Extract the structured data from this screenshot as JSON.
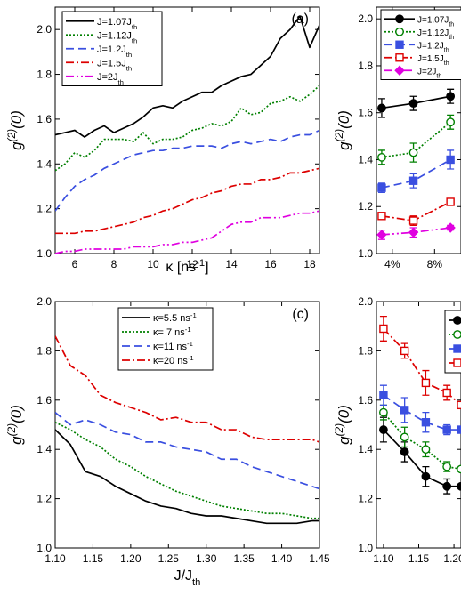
{
  "panels": [
    {
      "id": "a",
      "panel_label": "(a)",
      "xlabel": "κ [ns",
      "xlabel_sup": "-1",
      "xlabel_tail": "]",
      "ylabel": "g",
      "ylabel_sup": "(2)",
      "ylabel_tail": "(0)"
    },
    {
      "id": "b",
      "panel_label": "",
      "xlabel": "",
      "ylabel": "g",
      "ylabel_sup": "(2)",
      "ylabel_tail": "(0)"
    },
    {
      "id": "c",
      "panel_label": "(c)",
      "xlabel": "J/J",
      "xlabel_sub": "th",
      "ylabel": "g",
      "ylabel_sup": "(2)",
      "ylabel_tail": "(0)"
    },
    {
      "id": "d",
      "panel_label": "",
      "xlabel": "",
      "ylabel": "g",
      "ylabel_sup": "(2)",
      "ylabel_tail": "(0)"
    }
  ],
  "chart_data": [
    {
      "panel": "a",
      "type": "line",
      "xlim": [
        5,
        18.5
      ],
      "ylim": [
        1.0,
        2.1
      ],
      "xticks": [
        "6",
        "8",
        "10",
        "12",
        "14",
        "16",
        "18"
      ],
      "yticks": [
        "1.0",
        "1.2",
        "1.4",
        "1.6",
        "1.8",
        "2.0"
      ],
      "xtick_values": [
        6,
        8,
        10,
        12,
        14,
        16,
        18
      ],
      "ytick_values": [
        1.0,
        1.2,
        1.4,
        1.6,
        1.8,
        2.0
      ],
      "legend_position": "top-left",
      "x": [
        5,
        5.5,
        6,
        6.5,
        7,
        7.5,
        8,
        8.5,
        9,
        9.5,
        10,
        10.5,
        11,
        11.5,
        12,
        12.5,
        13,
        13.5,
        14,
        14.5,
        15,
        15.5,
        16,
        16.5,
        17,
        17.5,
        18,
        18.5
      ],
      "series": [
        {
          "name": "J=1.07J",
          "name_sub": "th",
          "color": "#000000",
          "dash": "",
          "values": [
            1.53,
            1.54,
            1.55,
            1.52,
            1.55,
            1.57,
            1.54,
            1.56,
            1.58,
            1.61,
            1.65,
            1.66,
            1.65,
            1.68,
            1.7,
            1.72,
            1.72,
            1.75,
            1.77,
            1.79,
            1.8,
            1.84,
            1.88,
            1.96,
            2.0,
            2.06,
            1.92,
            2.02
          ]
        },
        {
          "name": "J=1.12J",
          "name_sub": "th",
          "color": "#008000",
          "dash": "2,2",
          "values": [
            1.37,
            1.4,
            1.45,
            1.43,
            1.46,
            1.51,
            1.51,
            1.51,
            1.5,
            1.54,
            1.49,
            1.51,
            1.51,
            1.52,
            1.55,
            1.56,
            1.58,
            1.57,
            1.59,
            1.65,
            1.62,
            1.63,
            1.67,
            1.68,
            1.7,
            1.68,
            1.71,
            1.75
          ]
        },
        {
          "name": "J=1.2J",
          "name_sub": "th",
          "color": "#3a4fe0",
          "dash": "9,5",
          "values": [
            1.19,
            1.25,
            1.3,
            1.33,
            1.35,
            1.38,
            1.4,
            1.42,
            1.44,
            1.45,
            1.46,
            1.46,
            1.47,
            1.47,
            1.48,
            1.48,
            1.48,
            1.47,
            1.49,
            1.5,
            1.49,
            1.5,
            1.51,
            1.5,
            1.52,
            1.53,
            1.53,
            1.55
          ]
        },
        {
          "name": "J=1.5J",
          "name_sub": "th",
          "color": "#dd0000",
          "dash": "9,3,2,3",
          "values": [
            1.09,
            1.09,
            1.09,
            1.1,
            1.1,
            1.11,
            1.12,
            1.13,
            1.14,
            1.16,
            1.17,
            1.19,
            1.2,
            1.22,
            1.24,
            1.25,
            1.27,
            1.28,
            1.3,
            1.31,
            1.31,
            1.33,
            1.33,
            1.34,
            1.36,
            1.36,
            1.37,
            1.38
          ]
        },
        {
          "name": "J=2J",
          "name_sub": "th",
          "color": "#e000e0",
          "dash": "9,3,2,3,2,3",
          "values": [
            1.0,
            1.01,
            1.01,
            1.02,
            1.02,
            1.02,
            1.02,
            1.02,
            1.03,
            1.03,
            1.03,
            1.04,
            1.04,
            1.05,
            1.05,
            1.06,
            1.07,
            1.1,
            1.13,
            1.14,
            1.14,
            1.16,
            1.16,
            1.16,
            1.17,
            1.18,
            1.18,
            1.19
          ]
        }
      ]
    },
    {
      "panel": "b",
      "type": "line",
      "xlim": [
        2.5,
        10.5
      ],
      "ylim": [
        1.0,
        2.05
      ],
      "xticks": [
        "4%",
        "8%"
      ],
      "yticks": [
        "1.0",
        "1.2",
        "1.4",
        "1.6",
        "1.8",
        "2.0"
      ],
      "xtick_values": [
        4,
        8
      ],
      "ytick_values": [
        1.0,
        1.2,
        1.4,
        1.6,
        1.8,
        2.0
      ],
      "legend_position": "top-right",
      "x": [
        3,
        6,
        9.5
      ],
      "series": [
        {
          "name": "J=1.07J",
          "name_sub": "th",
          "color": "#000000",
          "marker": "circle-filled",
          "dash": "",
          "values": [
            1.62,
            1.64,
            1.67
          ],
          "err": [
            0.04,
            0.03,
            0.03
          ]
        },
        {
          "name": "J=1.12J",
          "name_sub": "th",
          "color": "#008000",
          "marker": "circle-open",
          "dash": "2,2",
          "values": [
            1.41,
            1.43,
            1.56
          ],
          "err": [
            0.03,
            0.04,
            0.03
          ]
        },
        {
          "name": "J=1.2J",
          "name_sub": "th",
          "color": "#3a4fe0",
          "marker": "square-filled",
          "dash": "9,5",
          "values": [
            1.28,
            1.31,
            1.4
          ],
          "err": [
            0.02,
            0.03,
            0.04
          ]
        },
        {
          "name": "J=1.5J",
          "name_sub": "th",
          "color": "#dd0000",
          "marker": "square-open",
          "dash": "9,3,2,3",
          "values": [
            1.16,
            1.14,
            1.22
          ],
          "err": [
            0.01,
            0.02,
            0.01
          ]
        },
        {
          "name": "J=2J",
          "name_sub": "th",
          "color": "#e000e0",
          "marker": "diamond-filled",
          "dash": "9,3,2,3,2,3",
          "values": [
            1.08,
            1.09,
            1.11
          ],
          "err": [
            0.02,
            0.02,
            0.01
          ]
        }
      ]
    },
    {
      "panel": "c",
      "type": "line",
      "xlim": [
        1.1,
        1.45
      ],
      "ylim": [
        1.0,
        2.0
      ],
      "xticks": [
        "1.10",
        "1.15",
        "1.20",
        "1.25",
        "1.30",
        "1.35",
        "1.40",
        "1.45"
      ],
      "yticks": [
        "1.0",
        "1.2",
        "1.4",
        "1.6",
        "1.8",
        "2.0"
      ],
      "xtick_values": [
        1.1,
        1.15,
        1.2,
        1.25,
        1.3,
        1.35,
        1.4,
        1.45
      ],
      "ytick_values": [
        1.0,
        1.2,
        1.4,
        1.6,
        1.8,
        2.0
      ],
      "legend_position": "top-right",
      "x": [
        1.1,
        1.12,
        1.14,
        1.16,
        1.18,
        1.2,
        1.22,
        1.24,
        1.26,
        1.28,
        1.3,
        1.32,
        1.34,
        1.36,
        1.38,
        1.4,
        1.42,
        1.44,
        1.45
      ],
      "series": [
        {
          "name": "κ=5.5 ns",
          "name_sup": "-1",
          "color": "#000000",
          "dash": "",
          "values": [
            1.48,
            1.42,
            1.31,
            1.29,
            1.25,
            1.22,
            1.19,
            1.17,
            1.16,
            1.14,
            1.13,
            1.13,
            1.12,
            1.11,
            1.1,
            1.1,
            1.1,
            1.11,
            1.11
          ]
        },
        {
          "name": "κ= 7 ns",
          "name_sup": "-1",
          "color": "#008000",
          "dash": "2,2",
          "values": [
            1.51,
            1.48,
            1.44,
            1.41,
            1.36,
            1.33,
            1.29,
            1.26,
            1.23,
            1.21,
            1.19,
            1.17,
            1.16,
            1.15,
            1.14,
            1.14,
            1.13,
            1.12,
            1.12
          ]
        },
        {
          "name": "κ=11 ns",
          "name_sup": "-1",
          "color": "#3a4fe0",
          "dash": "9,5",
          "values": [
            1.55,
            1.5,
            1.52,
            1.5,
            1.47,
            1.46,
            1.43,
            1.43,
            1.41,
            1.4,
            1.39,
            1.36,
            1.36,
            1.33,
            1.31,
            1.29,
            1.27,
            1.25,
            1.24
          ]
        },
        {
          "name": "κ=20 ns",
          "name_sup": "-1",
          "color": "#dd0000",
          "dash": "9,3,2,3",
          "values": [
            1.86,
            1.74,
            1.7,
            1.62,
            1.59,
            1.57,
            1.55,
            1.52,
            1.53,
            1.51,
            1.51,
            1.48,
            1.48,
            1.45,
            1.44,
            1.44,
            1.44,
            1.44,
            1.43
          ]
        }
      ]
    },
    {
      "panel": "d",
      "type": "line",
      "xlim": [
        1.09,
        1.21
      ],
      "ylim": [
        1.0,
        2.0
      ],
      "xticks": [
        "1.10",
        "1.15",
        "1.20"
      ],
      "yticks": [
        "1.0",
        "1.2",
        "1.4",
        "1.6",
        "1.8",
        "2.0"
      ],
      "xtick_values": [
        1.1,
        1.15,
        1.2
      ],
      "ytick_values": [
        1.0,
        1.2,
        1.4,
        1.6,
        1.8,
        2.0
      ],
      "legend_position": "top-right",
      "x": [
        1.1,
        1.13,
        1.16,
        1.19,
        1.21
      ],
      "series": [
        {
          "name": "",
          "color": "#000000",
          "marker": "circle-filled",
          "dash": "",
          "values": [
            1.48,
            1.39,
            1.29,
            1.25,
            1.25
          ],
          "err": [
            0.05,
            0.04,
            0.04,
            0.03,
            0.0
          ]
        },
        {
          "name": "",
          "color": "#008000",
          "marker": "circle-open",
          "dash": "2,2",
          "values": [
            1.55,
            1.45,
            1.4,
            1.33,
            1.32
          ],
          "err": [
            0.03,
            0.04,
            0.03,
            0.02,
            0.0
          ]
        },
        {
          "name": "",
          "color": "#3a4fe0",
          "marker": "square-filled",
          "dash": "9,5",
          "values": [
            1.62,
            1.56,
            1.51,
            1.48,
            1.48
          ],
          "err": [
            0.04,
            0.05,
            0.04,
            0.02,
            0.0
          ]
        },
        {
          "name": "",
          "color": "#dd0000",
          "marker": "square-open",
          "dash": "9,3,2,3",
          "values": [
            1.89,
            1.8,
            1.67,
            1.63,
            1.58
          ],
          "err": [
            0.05,
            0.03,
            0.05,
            0.03,
            0.0
          ]
        }
      ]
    }
  ]
}
